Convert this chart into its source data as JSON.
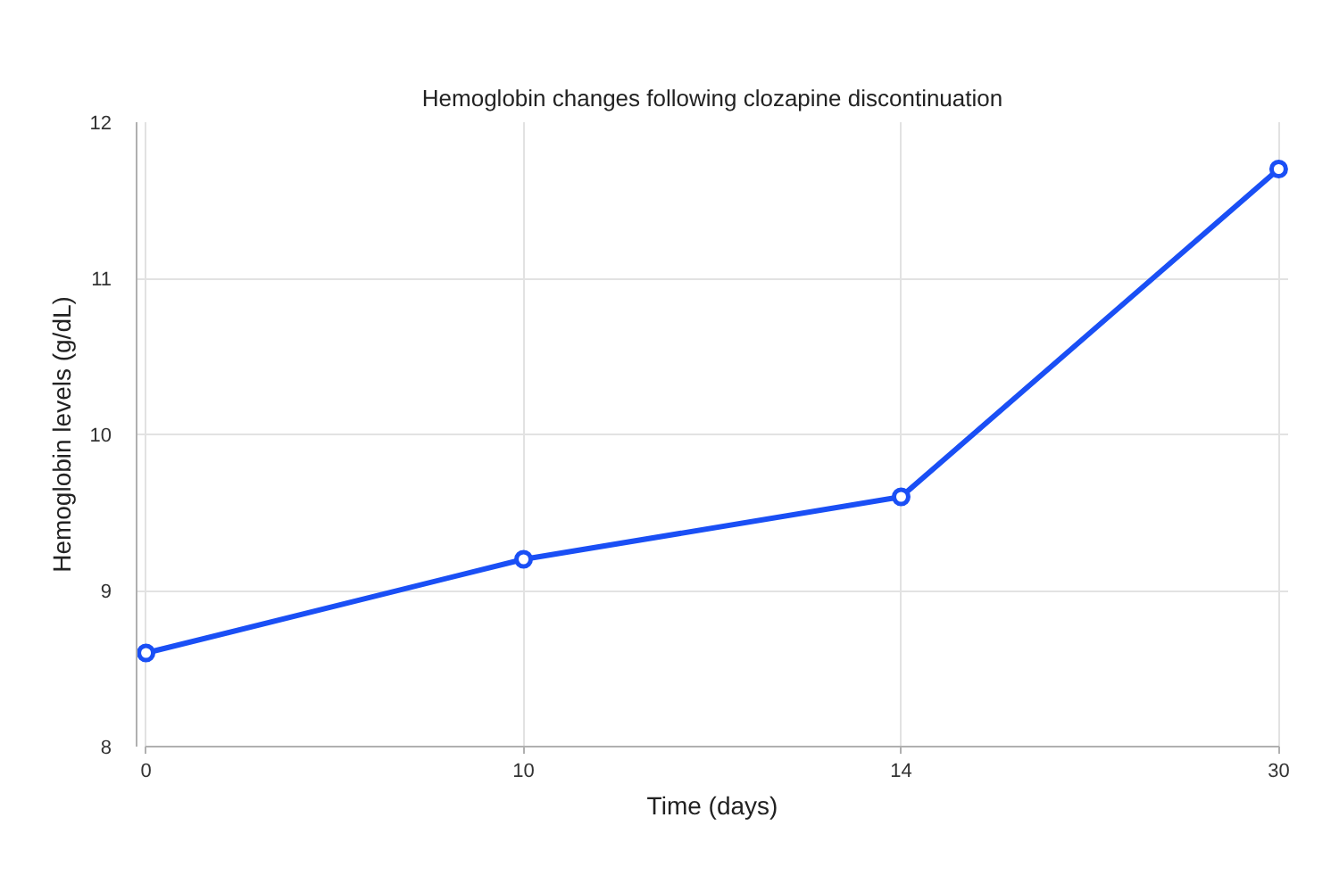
{
  "chart_data": {
    "type": "line",
    "title": "Hemoglobin changes following clozapine discontinuation",
    "xlabel": "Time (days)",
    "ylabel": "Hemoglobin levels (g/dL)",
    "categories": [
      "0",
      "10",
      "14",
      "30"
    ],
    "series": [
      {
        "color": "#1a4ff5",
        "values": [
          8.6,
          9.2,
          9.6,
          11.7
        ]
      }
    ],
    "ylim": [
      8,
      12
    ],
    "yticks": [
      8,
      9,
      10,
      11,
      12
    ],
    "grid": true,
    "marker": "circle",
    "line_style": "solid"
  }
}
